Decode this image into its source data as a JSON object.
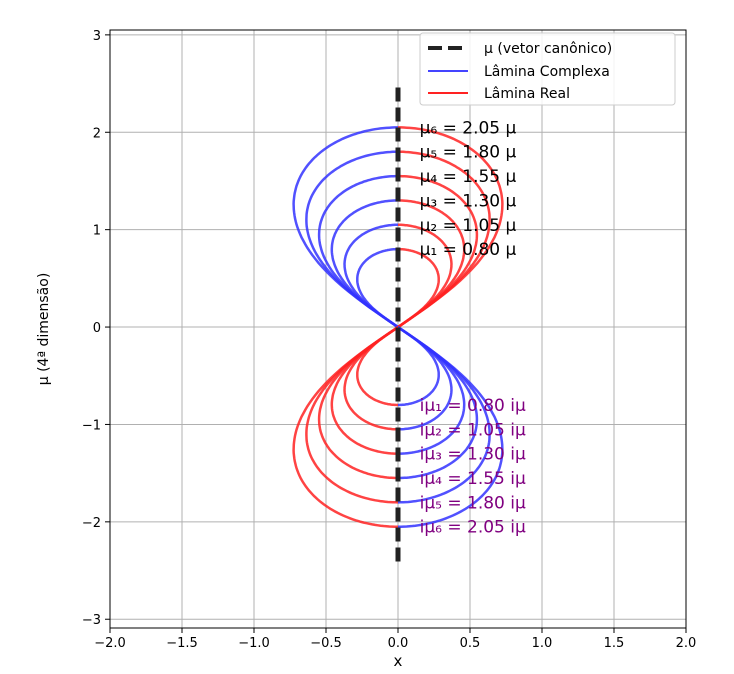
{
  "chart_data": {
    "type": "line",
    "title": "",
    "xlabel": "x",
    "ylabel": "μ (4ª dimensão)",
    "xlim": [
      -2.0,
      2.0
    ],
    "ylim": [
      -3.09,
      3.05
    ],
    "grid": true,
    "xticks": [
      "−2.0",
      "−1.5",
      "−1.0",
      "−0.5",
      "0.0",
      "0.5",
      "1.0",
      "1.5",
      "2.0"
    ],
    "xtick_values": [
      -2,
      -1.5,
      -1,
      -0.5,
      0,
      0.5,
      1,
      1.5,
      2
    ],
    "yticks": [
      "−3",
      "−2",
      "−1",
      "0",
      "1",
      "2",
      "3"
    ],
    "ytick_values": [
      -3,
      -2,
      -1,
      0,
      1,
      2,
      3
    ],
    "legend": {
      "placement": "top-right",
      "entries": [
        {
          "label": "μ (vetor canônico)",
          "color": "#222222",
          "style": "dashed"
        },
        {
          "label": "Lâmina Complexa",
          "color": "#3333ff",
          "style": "solid"
        },
        {
          "label": "Lâmina Real",
          "color": "#ff2222",
          "style": "solid"
        }
      ]
    },
    "canonical_vector": {
      "x": 0,
      "y_range": [
        -2.46,
        2.46
      ]
    },
    "loop_shape": "lemniscate petal r = h·sqrt(cos 2ψ)",
    "upper_loops": {
      "heights": [
        0.8,
        1.05,
        1.3,
        1.55,
        1.8,
        2.05
      ],
      "left_color": "#3333ff",
      "right_color": "#ff2222",
      "labels": [
        "μ₁ = 0.80 μ",
        "μ₂ = 1.05 μ",
        "μ₃ = 1.30 μ",
        "μ₄ = 1.55 μ",
        "μ₅ = 1.80 μ",
        "μ₆ = 2.05 μ"
      ],
      "label_color": "#000000"
    },
    "lower_loops": {
      "heights": [
        -0.8,
        -1.05,
        -1.3,
        -1.55,
        -1.8,
        -2.05
      ],
      "left_color": "#ff2222",
      "right_color": "#3333ff",
      "labels": [
        "iμ₁ = 0.80 iμ",
        "iμ₂ = 1.05 iμ",
        "iμ₃ = 1.30 iμ",
        "iμ₄ = 1.55 iμ",
        "iμ₅ = 1.80 iμ",
        "iμ₆ = 2.05 iμ"
      ],
      "label_color": "#800080"
    },
    "label_x": 0.15
  }
}
